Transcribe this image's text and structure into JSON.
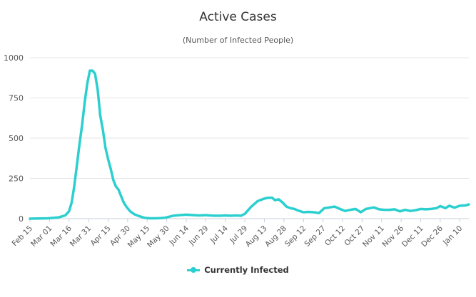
{
  "chart_data": {
    "type": "line",
    "title": "Active Cases",
    "subtitle": "(Number of Infected People)",
    "xlabel": "",
    "ylabel": "",
    "ylim": [
      0,
      1000
    ],
    "y_ticks": [
      "0",
      "250",
      "500",
      "750",
      "1000"
    ],
    "grid": true,
    "legend_position": "bottom-center",
    "color": "#2ccfcf",
    "x_start": "2020-02-15",
    "x_end": "2021-01-17",
    "x_tick_labels": [
      "Feb 15",
      "Mar 01",
      "Mar 16",
      "Mar 31",
      "Apr 15",
      "Apr 30",
      "May 15",
      "May 30",
      "Jun 14",
      "Jun 29",
      "Jul 14",
      "Jul 29",
      "Aug 13",
      "Aug 28",
      "Sep 12",
      "Sep 27",
      "Oct 12",
      "Oct 27",
      "Nov 11",
      "Nov 26",
      "Dec 11",
      "Dec 26",
      "Jan 10"
    ],
    "series": [
      {
        "name": "Currently Infected",
        "day_offsets": [
          0,
          14,
          22,
          27,
          30,
          32,
          34,
          36,
          38,
          40,
          42,
          44,
          46,
          48,
          50,
          52,
          54,
          56,
          58,
          60,
          62,
          64,
          66,
          68,
          70,
          72,
          74,
          77,
          80,
          84,
          88,
          92,
          96,
          100,
          103,
          106,
          110,
          115,
          120,
          125,
          130,
          135,
          138,
          142,
          146,
          150,
          154,
          158,
          162,
          165,
          170,
          175,
          180,
          183,
          186,
          188,
          191,
          194,
          197,
          200,
          203,
          206,
          210,
          214,
          218,
          222,
          226,
          230,
          234,
          238,
          242,
          246,
          250,
          254,
          258,
          261,
          264,
          268,
          272,
          276,
          280,
          284,
          288,
          292,
          296,
          300,
          304,
          308,
          312,
          315,
          319,
          322,
          326,
          330,
          334,
          337
        ],
        "values": [
          0,
          2,
          8,
          20,
          45,
          100,
          200,
          330,
          460,
          580,
          720,
          840,
          920,
          920,
          900,
          800,
          640,
          550,
          440,
          370,
          310,
          240,
          200,
          180,
          140,
          100,
          75,
          45,
          28,
          15,
          5,
          2,
          2,
          3,
          5,
          10,
          18,
          22,
          25,
          22,
          20,
          22,
          20,
          18,
          18,
          20,
          18,
          20,
          18,
          30,
          75,
          110,
          125,
          130,
          130,
          115,
          120,
          100,
          75,
          65,
          60,
          50,
          40,
          42,
          40,
          35,
          65,
          70,
          75,
          60,
          48,
          55,
          60,
          40,
          60,
          65,
          70,
          58,
          55,
          55,
          58,
          45,
          55,
          48,
          52,
          60,
          58,
          60,
          65,
          78,
          65,
          80,
          68,
          80,
          82,
          88
        ]
      }
    ]
  },
  "legend": {
    "label": "Currently Infected"
  }
}
